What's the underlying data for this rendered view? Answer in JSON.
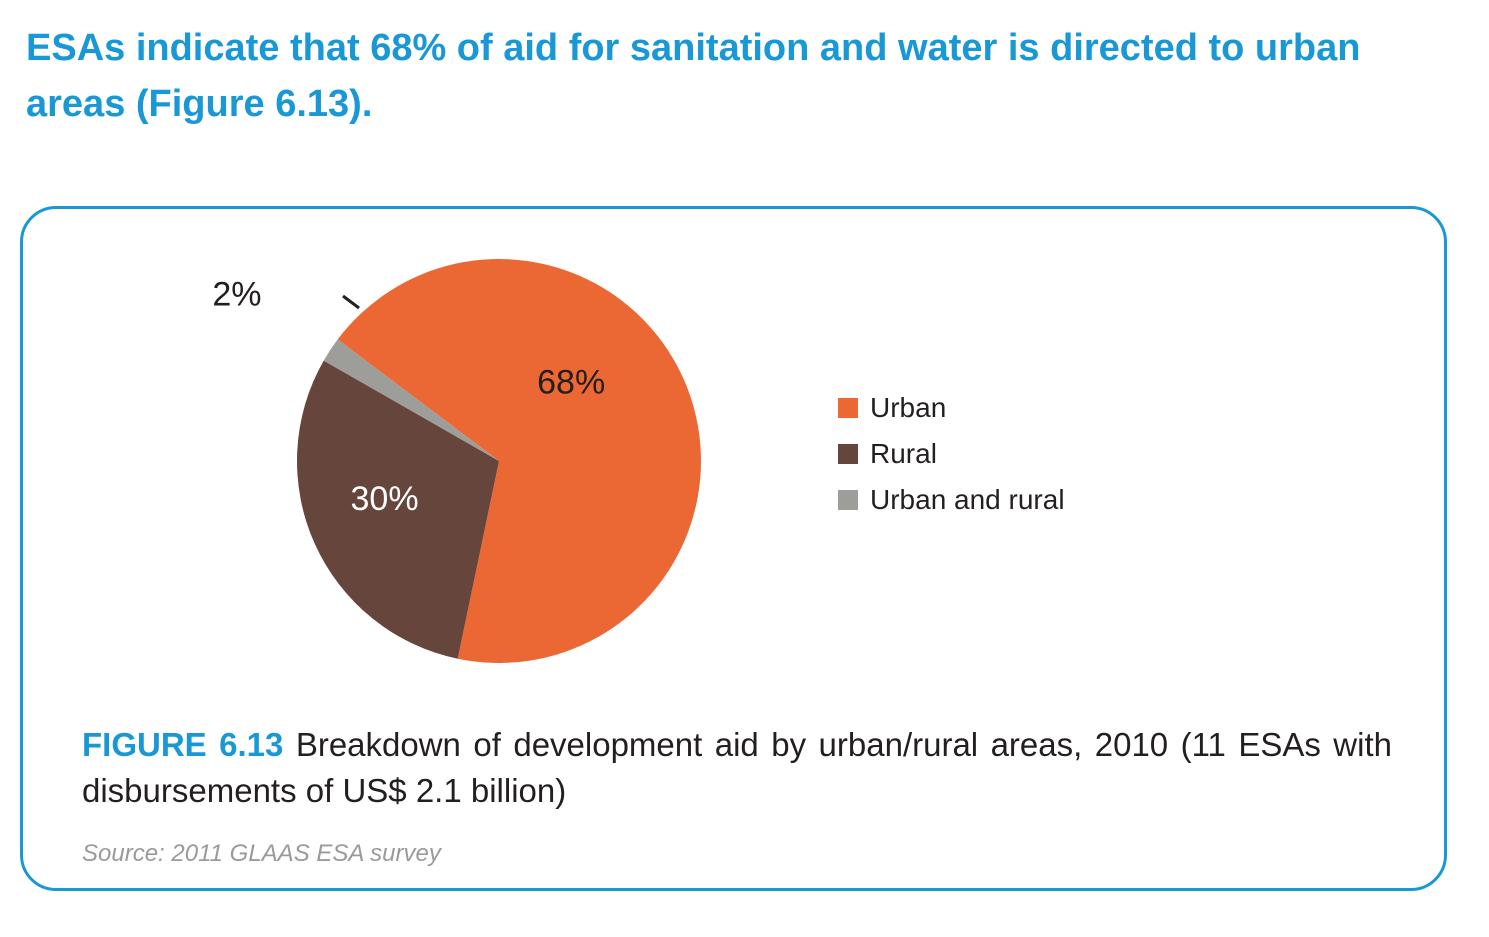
{
  "heading": "ESAs indicate that 68% of aid for sanitation and water is directed to urban areas (Figure 6.13).",
  "caption": {
    "label": "FIGURE 6.13",
    "text": "Breakdown of development aid by urban/rural areas, 2010 (11 ESAs with disbursements of US$ 2.1 billion)"
  },
  "source": "Source: 2011 GLAAS ESA survey",
  "chart_data": {
    "type": "pie",
    "title": "",
    "slices": [
      {
        "name": "Urban",
        "value": 68,
        "label": "68%",
        "color": "#eb6835"
      },
      {
        "name": "Rural",
        "value": 30,
        "label": "30%",
        "color": "#66463c"
      },
      {
        "name": "Urban and rural",
        "value": 2,
        "label": "2%",
        "color": "#9d9d99"
      }
    ],
    "legend_position": "right",
    "label_colors": {
      "Urban": "#231f20",
      "Rural": "#ffffff",
      "Urban and rural": "#231f20"
    }
  }
}
